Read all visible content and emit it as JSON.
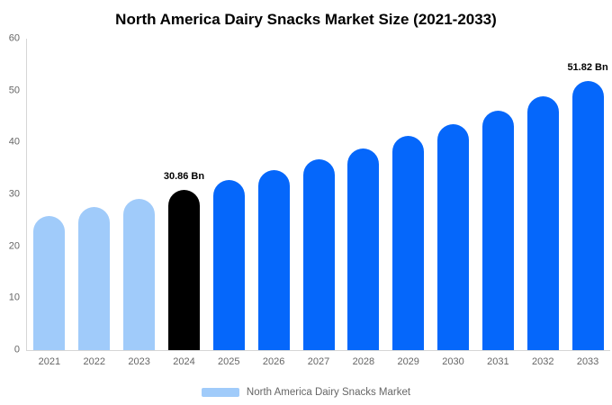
{
  "chart": {
    "title": "North America Dairy Snacks Market Size (2021-2033)",
    "legend": {
      "label": "North America Dairy Snacks Market",
      "swatch_color": "#a0cbfa"
    }
  },
  "chart_data": {
    "type": "bar",
    "title": "North America Dairy Snacks Market Size (2021-2033)",
    "categories": [
      "2021",
      "2022",
      "2023",
      "2024",
      "2025",
      "2026",
      "2027",
      "2028",
      "2029",
      "2030",
      "2031",
      "2032",
      "2033"
    ],
    "values": [
      25.9,
      27.5,
      29.1,
      30.86,
      32.7,
      34.6,
      36.7,
      38.9,
      41.2,
      43.6,
      46.2,
      48.9,
      51.82
    ],
    "unit": "Bn",
    "xlabel": "",
    "ylabel": "",
    "ylim": [
      0,
      60
    ],
    "yticks": [
      0,
      10,
      20,
      30,
      40,
      50,
      60
    ],
    "grid": false,
    "legend_position": "bottom",
    "legend_label": "North America Dairy Snacks Market",
    "bar_colors": {
      "past": "#a0cbfa",
      "current": "#000000",
      "forecast": "#0567fb"
    },
    "color_assignment": [
      "past",
      "past",
      "past",
      "current",
      "forecast",
      "forecast",
      "forecast",
      "forecast",
      "forecast",
      "forecast",
      "forecast",
      "forecast",
      "forecast"
    ],
    "data_labels": [
      {
        "category": "2024",
        "text": "30.86 Bn"
      },
      {
        "category": "2033",
        "text": "51.82 Bn"
      }
    ]
  }
}
